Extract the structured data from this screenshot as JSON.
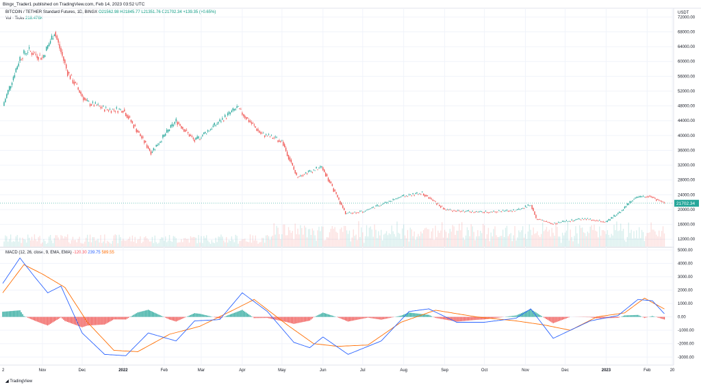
{
  "header": {
    "published": "Bingx_Trader1 published on TradingView.com, Feb 14, 2023 03:52 UTC"
  },
  "legend": {
    "symbol": "BITCOIN / TETHER Standard Futures, 1D, BINGX",
    "ohlc": "O21562.98 H21845.77 L21351.76 C21702.34 +139.35 (+0.65%)",
    "vol_label": "Vol · Ticks",
    "vol_value": "218.476K",
    "macd_label": "MACD (12, 26, close, 9, EMA, EMA)",
    "macd_hist": "-120.30",
    "macd_line": "239.75",
    "macd_signal": "589.55"
  },
  "footer": {
    "brand": "TradingView"
  },
  "colors": {
    "up": "#26a69a",
    "down": "#ef5350",
    "macd_line": "#2962ff",
    "signal_line": "#ff6d00",
    "price_tag": "#26a69a"
  },
  "chart_data": {
    "type": "line",
    "price_axis": {
      "unit": "USDT",
      "ticks": [
        "72000.00",
        "68000.00",
        "64000.00",
        "60000.00",
        "56000.00",
        "52000.00",
        "48000.00",
        "44000.00",
        "40000.00",
        "36000.00",
        "32000.00",
        "28000.00",
        "24000.00",
        "20000.00",
        "16000.00",
        "12000.00"
      ],
      "ylim": [
        10000,
        74000
      ],
      "last_price": "21702.34"
    },
    "macd_axis": {
      "ticks": [
        "5000.00",
        "4000.00",
        "3000.00",
        "2000.00",
        "1000.00",
        "0.00",
        "-1000.00",
        "-2000.00",
        "-3000.00"
      ],
      "ylim": [
        -3600,
        5200
      ]
    },
    "x_ticks": [
      "Nov",
      "Dec",
      "2022",
      "Feb",
      "Mar",
      "Apr",
      "May",
      "Jun",
      "Jul",
      "Aug",
      "Sep",
      "Oct",
      "Nov",
      "Dec",
      "2023",
      "Feb",
      "20"
    ],
    "x_start_label": "2",
    "price_series": {
      "name": "BITCOIN / TETHER",
      "dates": [
        "2021-10-02",
        "2021-10-15",
        "2021-10-21",
        "2021-11-01",
        "2021-11-10",
        "2021-11-20",
        "2021-12-04",
        "2021-12-20",
        "2022-01-01",
        "2022-01-22",
        "2022-02-10",
        "2022-02-24",
        "2022-03-28",
        "2022-04-15",
        "2022-05-01",
        "2022-05-12",
        "2022-05-31",
        "2022-06-18",
        "2022-07-01",
        "2022-07-30",
        "2022-08-15",
        "2022-09-01",
        "2022-09-15",
        "2022-10-01",
        "2022-10-25",
        "2022-11-05",
        "2022-11-09",
        "2022-11-21",
        "2022-12-15",
        "2023-01-01",
        "2023-01-13",
        "2023-01-21",
        "2023-02-02",
        "2023-02-14"
      ],
      "close": [
        48000,
        61000,
        63000,
        61000,
        68000,
        57000,
        49000,
        47000,
        47000,
        35500,
        44000,
        38500,
        47500,
        40500,
        38500,
        29000,
        31500,
        19000,
        19500,
        23500,
        24500,
        20000,
        19500,
        19300,
        19800,
        21300,
        17500,
        16200,
        17500,
        16600,
        19900,
        22800,
        23800,
        21702
      ]
    },
    "macd_series": {
      "name": "MACD",
      "dates": [
        "2021-10-02",
        "2021-10-15",
        "2021-10-26",
        "2021-11-05",
        "2021-11-15",
        "2021-12-01",
        "2021-12-18",
        "2022-01-03",
        "2022-01-20",
        "2022-02-10",
        "2022-02-24",
        "2022-03-15",
        "2022-04-01",
        "2022-04-20",
        "2022-05-10",
        "2022-05-22",
        "2022-06-01",
        "2022-06-20",
        "2022-07-15",
        "2022-08-05",
        "2022-08-20",
        "2022-09-10",
        "2022-10-01",
        "2022-10-25",
        "2022-11-05",
        "2022-11-22",
        "2022-12-20",
        "2023-01-10",
        "2023-01-25",
        "2023-02-05",
        "2023-02-14"
      ],
      "values": [
        2500,
        4400,
        3000,
        1800,
        2300,
        -1200,
        -2800,
        -2900,
        -1200,
        -1800,
        -300,
        -200,
        1800,
        400,
        -1900,
        -2300,
        -1500,
        -2800,
        -1800,
        400,
        600,
        -400,
        -400,
        -100,
        600,
        -1600,
        -300,
        100,
        1300,
        1200,
        240
      ]
    },
    "signal_series": {
      "name": "Signal",
      "dates": [
        "2021-10-02",
        "2021-10-18",
        "2021-11-01",
        "2021-11-18",
        "2021-12-05",
        "2021-12-25",
        "2022-01-12",
        "2022-02-05",
        "2022-02-28",
        "2022-03-25",
        "2022-04-10",
        "2022-05-05",
        "2022-05-25",
        "2022-06-12",
        "2022-07-05",
        "2022-07-30",
        "2022-08-25",
        "2022-09-25",
        "2022-10-25",
        "2022-11-15",
        "2022-12-05",
        "2022-12-25",
        "2023-01-15",
        "2023-01-30",
        "2023-02-14"
      ],
      "values": [
        1800,
        3900,
        3200,
        2200,
        -400,
        -2500,
        -2600,
        -1300,
        -700,
        500,
        1300,
        -600,
        -2000,
        -2200,
        -2100,
        -400,
        500,
        0,
        -300,
        -600,
        -1000,
        0,
        300,
        1400,
        590
      ]
    },
    "histogram_note": "Positive bars green, negative bars red around the 0.00 line"
  }
}
